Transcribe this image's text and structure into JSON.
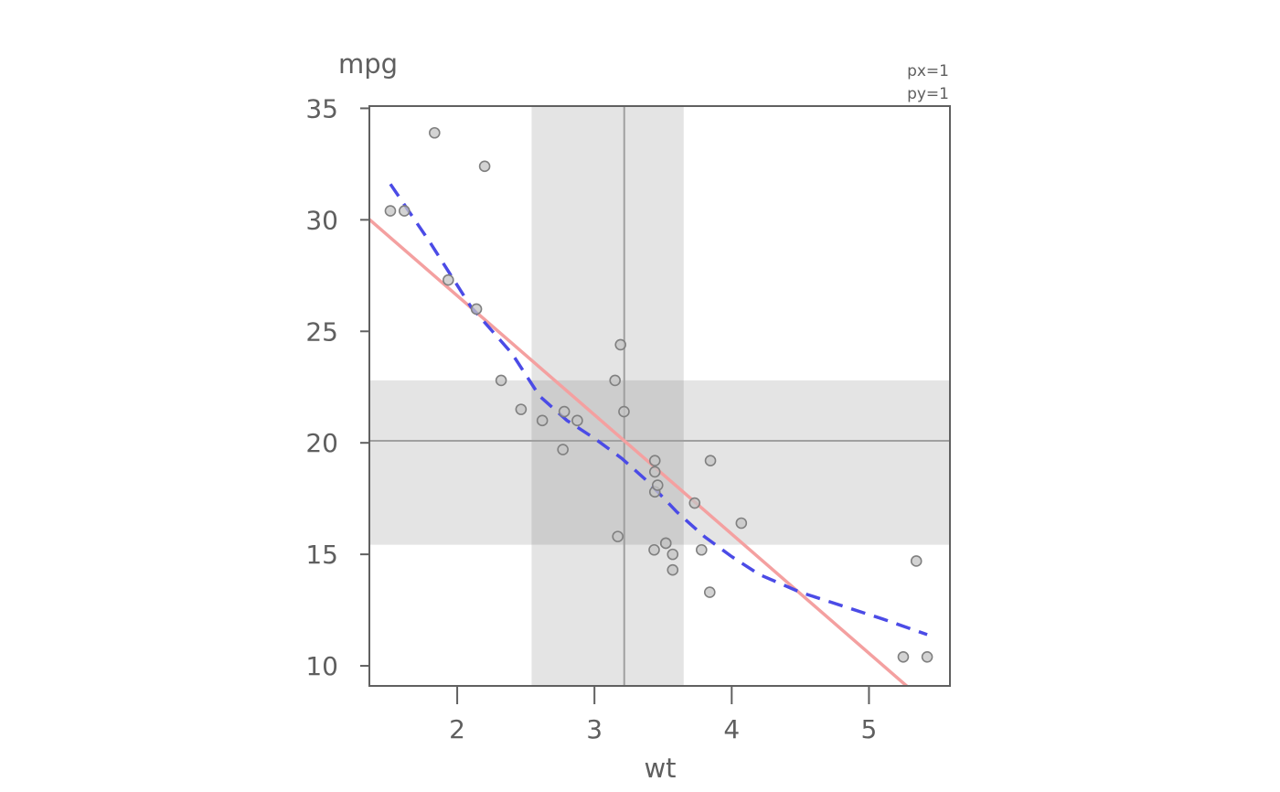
{
  "chart_data": {
    "type": "scatter",
    "title": "",
    "xlabel": "wt",
    "ylabel": "mpg",
    "xlim": [
      1.36,
      5.59
    ],
    "ylim": [
      9.1,
      35.1
    ],
    "xticks": [
      "2",
      "3",
      "4",
      "5"
    ],
    "yticks": [
      "10",
      "15",
      "20",
      "25",
      "30",
      "35"
    ],
    "annotations": [
      "px=1",
      "py=1"
    ],
    "points": [
      {
        "x": 1.513,
        "y": 30.4
      },
      {
        "x": 1.615,
        "y": 30.4
      },
      {
        "x": 1.835,
        "y": 33.9
      },
      {
        "x": 1.935,
        "y": 27.3
      },
      {
        "x": 2.14,
        "y": 26.0
      },
      {
        "x": 2.2,
        "y": 32.4
      },
      {
        "x": 2.32,
        "y": 22.8
      },
      {
        "x": 2.465,
        "y": 21.5
      },
      {
        "x": 2.62,
        "y": 21.0
      },
      {
        "x": 2.77,
        "y": 19.7
      },
      {
        "x": 2.78,
        "y": 21.4
      },
      {
        "x": 2.875,
        "y": 21.0
      },
      {
        "x": 3.15,
        "y": 22.8
      },
      {
        "x": 3.17,
        "y": 15.8
      },
      {
        "x": 3.19,
        "y": 24.4
      },
      {
        "x": 3.215,
        "y": 21.4
      },
      {
        "x": 3.435,
        "y": 15.2
      },
      {
        "x": 3.44,
        "y": 18.7
      },
      {
        "x": 3.44,
        "y": 19.2
      },
      {
        "x": 3.44,
        "y": 17.8
      },
      {
        "x": 3.46,
        "y": 18.1
      },
      {
        "x": 3.52,
        "y": 15.5
      },
      {
        "x": 3.52,
        "y": 15.5
      },
      {
        "x": 3.57,
        "y": 14.3
      },
      {
        "x": 3.57,
        "y": 15.0
      },
      {
        "x": 3.73,
        "y": 17.3
      },
      {
        "x": 3.78,
        "y": 15.2
      },
      {
        "x": 3.84,
        "y": 13.3
      },
      {
        "x": 3.845,
        "y": 19.2
      },
      {
        "x": 4.07,
        "y": 16.4
      },
      {
        "x": 5.25,
        "y": 10.4
      },
      {
        "x": 5.345,
        "y": 14.7
      },
      {
        "x": 5.424,
        "y": 10.4
      }
    ],
    "mean": {
      "x": 3.217,
      "y": 20.09
    },
    "x_band": [
      2.542,
      3.65
    ],
    "y_band": [
      15.43,
      22.8
    ],
    "regression_line": {
      "intercept": 37.285,
      "slope": -5.344,
      "color": "#f4a0a0"
    },
    "smooth_line": {
      "color": "#4b4be6",
      "x": [
        1.513,
        1.8,
        2.1,
        2.4,
        2.6,
        2.8,
        3.0,
        3.2,
        3.4,
        3.6,
        3.8,
        4.0,
        4.2,
        4.5,
        4.8,
        5.1,
        5.424
      ],
      "y": [
        31.6,
        29.0,
        26.1,
        24.0,
        22.1,
        21.0,
        20.2,
        19.3,
        18.2,
        16.9,
        15.8,
        14.9,
        14.1,
        13.3,
        12.7,
        12.1,
        11.4
      ]
    },
    "grid": false,
    "colors": {
      "band": "#e4e4e4",
      "overlap": "#cdcdcd",
      "guide": "#a0a0a0",
      "point_fill": "#c4c4c4",
      "point_stroke": "#808080",
      "axis": "#606060"
    }
  }
}
